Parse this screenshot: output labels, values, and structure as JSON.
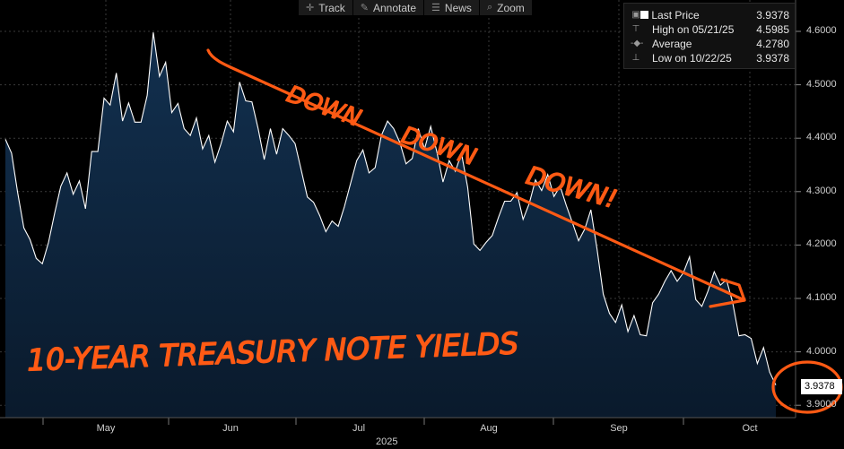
{
  "toolbar": {
    "track_label": "Track",
    "annotate_label": "Annotate",
    "news_label": "News",
    "zoom_label": "Zoom"
  },
  "legend": {
    "last_price_label": "Last Price",
    "last_price_value": "3.9378",
    "high_label": "High on 05/21/25",
    "high_value": "4.5985",
    "average_label": "Average",
    "average_value": "4.2780",
    "low_label": "Low on 10/22/25",
    "low_value": "3.9378"
  },
  "last_value_tag": "3.9378",
  "year_label": "2025",
  "annotations": {
    "down_text": "DOWN DOWN DOWN!",
    "title_text": "10-YEAR TREASURY NOTE YIELDS",
    "color": "#ff5a14"
  },
  "colors": {
    "background": "#000000",
    "line": "#ffffff",
    "fill_top": "#0f2a47",
    "fill_bottom": "#0a1c30",
    "grid": "#3c3c3c",
    "annotation": "#ff5a14"
  },
  "chart_data": {
    "type": "area",
    "series": [
      {
        "name": "Last Price",
        "values": [
          4.398,
          4.372,
          4.298,
          4.232,
          4.21,
          4.175,
          4.165,
          4.205,
          4.26,
          4.31,
          4.335,
          4.295,
          4.32,
          4.268,
          4.375,
          4.375,
          4.475,
          4.462,
          4.522,
          4.432,
          4.466,
          4.43,
          4.43,
          4.48,
          4.598,
          4.516,
          4.542,
          4.448,
          4.465,
          4.418,
          4.405,
          4.438,
          4.38,
          4.405,
          4.355,
          4.39,
          4.432,
          4.412,
          4.505,
          4.47,
          4.468,
          4.418,
          4.36,
          4.418,
          4.37,
          4.418,
          4.405,
          4.39,
          4.34,
          4.29,
          4.28,
          4.255,
          4.225,
          4.245,
          4.235,
          4.272,
          4.315,
          4.358,
          4.378,
          4.335,
          4.345,
          4.405,
          4.432,
          4.418,
          4.392,
          4.352,
          4.362,
          4.418,
          4.38,
          4.422,
          4.375,
          4.318,
          4.358,
          4.338,
          4.372,
          4.308,
          4.202,
          4.19,
          4.205,
          4.218,
          4.252,
          4.282,
          4.282,
          4.298,
          4.248,
          4.278,
          4.322,
          4.302,
          4.332,
          4.291,
          4.31,
          4.274,
          4.242,
          4.208,
          4.23,
          4.266,
          4.192,
          4.108,
          4.072,
          4.055,
          4.088,
          4.038,
          4.068,
          4.032,
          4.03,
          4.092,
          4.108,
          4.132,
          4.152,
          4.132,
          4.148,
          4.178,
          4.098,
          4.085,
          4.114,
          4.15,
          4.125,
          4.135,
          4.092,
          4.03,
          4.032,
          4.025,
          3.978,
          4.008,
          3.962,
          3.9378
        ]
      }
    ],
    "x_tick_labels": [
      "May",
      "Jun",
      "Jul",
      "Aug",
      "Sep",
      "Oct"
    ],
    "y_tick_labels": [
      "3.9000",
      "4.0000",
      "4.1000",
      "4.2000",
      "4.3000",
      "4.4000",
      "4.5000",
      "4.6000"
    ],
    "ylim": [
      3.88,
      4.62
    ],
    "ylabel": "",
    "xlabel": "2025",
    "grid": true,
    "legend_position": "top-right",
    "summary": {
      "last_price": 3.9378,
      "high": 4.5985,
      "high_date": "05/21/25",
      "average": 4.278,
      "low": 3.9378,
      "low_date": "10/22/25"
    }
  }
}
